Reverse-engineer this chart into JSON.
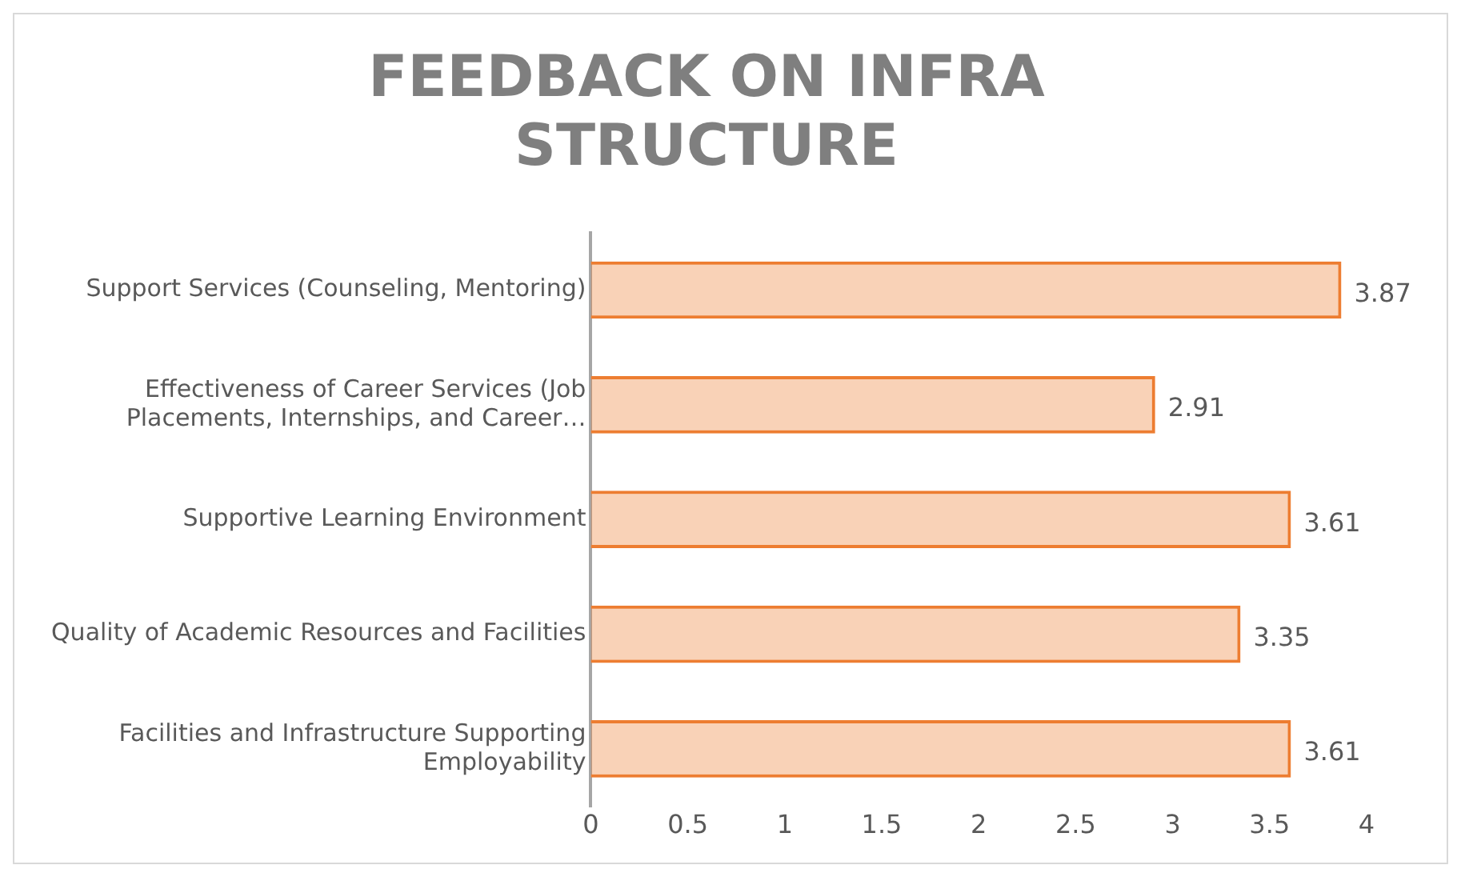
{
  "chart_data": {
    "type": "bar",
    "orientation": "horizontal",
    "title": "FEEDBACK ON INFRA STRUCTURE",
    "categories": [
      "Support Services (Counseling, Mentoring)",
      "Effectiveness of Career Services (Job Placements, Internships, and Career…",
      "Supportive Learning Environment",
      "Quality of Academic Resources and Facilities",
      "Facilities and Infrastructure Supporting Employability"
    ],
    "values": [
      3.87,
      2.91,
      3.61,
      3.35,
      3.61
    ],
    "color": "#ed7d31",
    "xlim": [
      0,
      4
    ],
    "xticks": [
      0,
      0.5,
      1,
      1.5,
      2,
      2.5,
      3,
      3.5,
      4
    ],
    "data_labels": true,
    "grid": false,
    "legend": false
  }
}
